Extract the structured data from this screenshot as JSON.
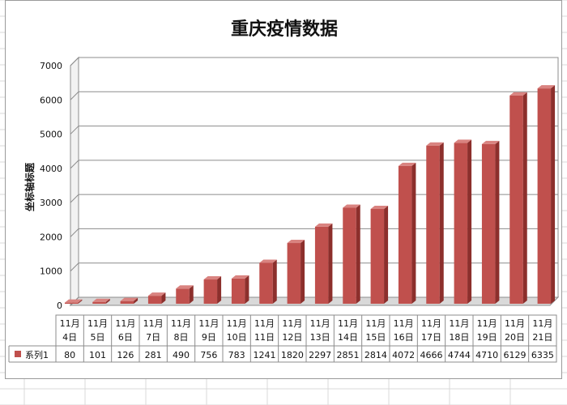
{
  "chart_data": {
    "type": "bar",
    "title": "重庆疫情数据",
    "ylabel": "坐标轴标题",
    "xlabel": "",
    "ylim": [
      0,
      7000
    ],
    "yticks": [
      "0",
      "1000",
      "2000",
      "3000",
      "4000",
      "5000",
      "6000",
      "7000"
    ],
    "grid": true,
    "legend_placement": "data-table",
    "categories": [
      [
        "11月",
        "4日"
      ],
      [
        "11月",
        "5日"
      ],
      [
        "11月",
        "6日"
      ],
      [
        "11月",
        "7日"
      ],
      [
        "11月",
        "8日"
      ],
      [
        "11月",
        "9日"
      ],
      [
        "11月",
        "10日"
      ],
      [
        "11月",
        "11日"
      ],
      [
        "11月",
        "12日"
      ],
      [
        "11月",
        "13日"
      ],
      [
        "11月",
        "14日"
      ],
      [
        "11月",
        "15日"
      ],
      [
        "11月",
        "16日"
      ],
      [
        "11月",
        "17日"
      ],
      [
        "11月",
        "18日"
      ],
      [
        "11月",
        "19日"
      ],
      [
        "11月",
        "20日"
      ],
      [
        "11月",
        "21日"
      ]
    ],
    "series": [
      {
        "name": "系列1",
        "color": "#c0504d",
        "values": [
          80,
          101,
          126,
          281,
          490,
          756,
          783,
          1241,
          1820,
          2297,
          2851,
          2814,
          4072,
          4666,
          4744,
          4710,
          6129,
          6335
        ]
      }
    ]
  }
}
